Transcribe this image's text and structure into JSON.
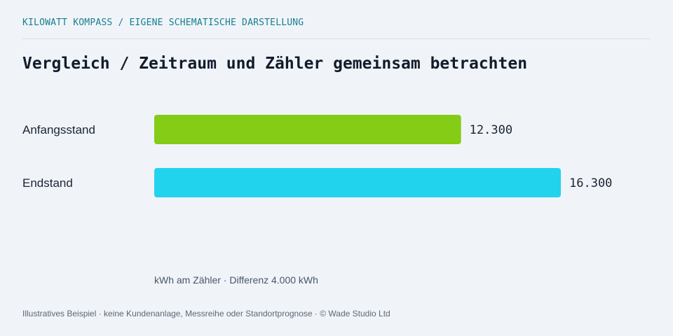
{
  "header": {
    "kicker": "KILOWATT KOMPASS / EIGENE SCHEMATISCHE DARSTELLUNG",
    "title": "Vergleich / Zeitraum und Zähler gemeinsam betrachten"
  },
  "chart_data": {
    "type": "bar",
    "orientation": "horizontal",
    "categories": [
      "Anfangsstand",
      "Endstand"
    ],
    "values": [
      12300,
      16300
    ],
    "value_labels": [
      "12.300",
      "16.300"
    ],
    "colors": [
      "#84cc16",
      "#22d3ee"
    ],
    "xlabel": "kWh am Zähler · Differenz 4.000 kWh",
    "xlim": [
      0,
      16300
    ],
    "grid": false,
    "legend": "none"
  },
  "footer": {
    "note": "Illustratives Beispiel · keine Kundenanlage, Messreihe oder Standortprognose · © Wade Studio Ltd"
  }
}
